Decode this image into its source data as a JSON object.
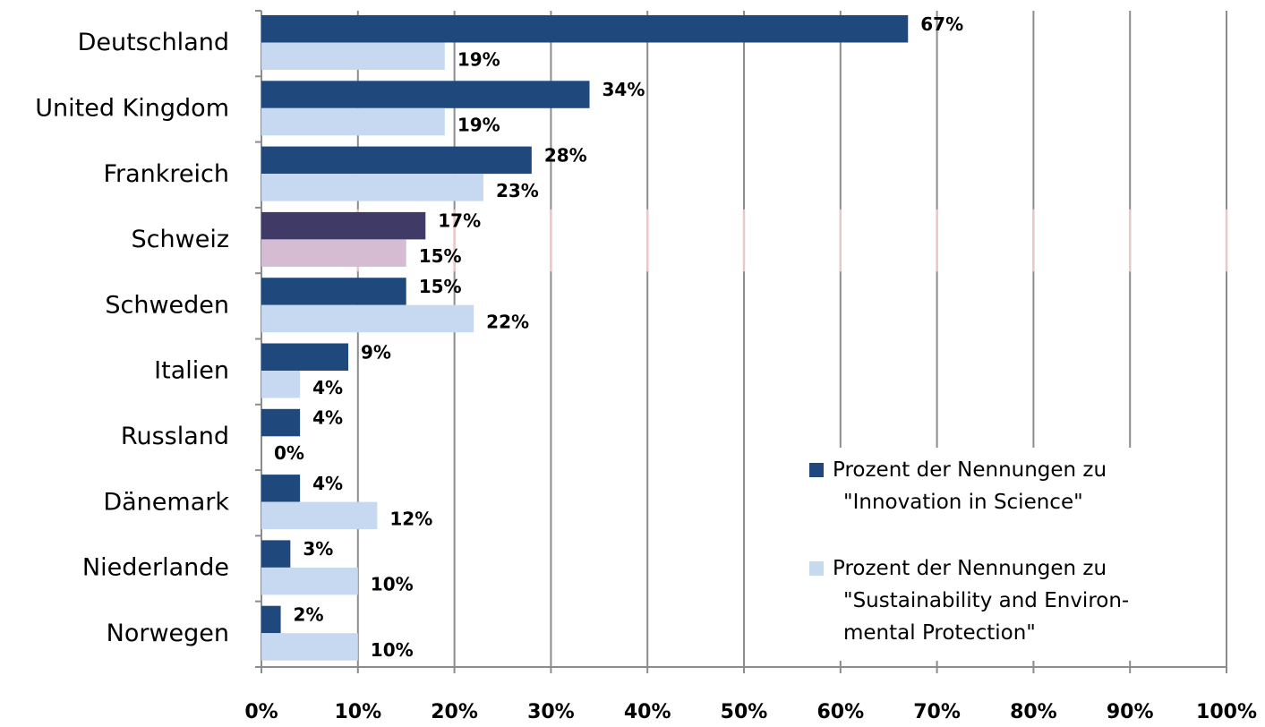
{
  "chart_data": {
    "type": "bar",
    "orientation": "horizontal",
    "categories": [
      "Deutschland",
      "United Kingdom",
      "Frankreich",
      "Schweiz",
      "Schweden",
      "Italien",
      "Russland",
      "Dänemark",
      "Niederlande",
      "Norwegen"
    ],
    "series": [
      {
        "name": "Prozent der Nennungen zu\n\"Innovation in Science\"",
        "color": "#1f497d",
        "highlight_color": "#3f3a66",
        "values": [
          67,
          34,
          28,
          17,
          15,
          9,
          4,
          4,
          3,
          2
        ],
        "value_labels": [
          "67%",
          "34%",
          "28%",
          "17%",
          "15%",
          "9%",
          "4%",
          "4%",
          "3%",
          "2%"
        ]
      },
      {
        "name": "Prozent der Nennungen zu\n\"Sustainability and Environ-\nmental Protection\"",
        "color": "#c6d9f1",
        "highlight_color": "#d5bcd2",
        "values": [
          19,
          19,
          23,
          15,
          22,
          4,
          0,
          12,
          10,
          10
        ],
        "value_labels": [
          "19%",
          "19%",
          "23%",
          "15%",
          "22%",
          "4%",
          "0%",
          "12%",
          "10%",
          "10%"
        ]
      }
    ],
    "highlight_category": "Schweiz",
    "highlight_text_color": "#5a1c1c",
    "xlim": [
      0,
      100
    ],
    "xticks": [
      {
        "value": 0,
        "label": "0%"
      },
      {
        "value": 10,
        "label": "10%"
      },
      {
        "value": 20,
        "label": "20%"
      },
      {
        "value": 30,
        "label": "30%"
      },
      {
        "value": 40,
        "label": "40%"
      },
      {
        "value": 50,
        "label": "50%"
      },
      {
        "value": 60,
        "label": "60%"
      },
      {
        "value": 70,
        "label": "70%"
      },
      {
        "value": 80,
        "label": "80%"
      },
      {
        "value": 90,
        "label": "90%"
      },
      {
        "value": 100,
        "label": "100%"
      }
    ],
    "grid": true,
    "legend": "lower right"
  }
}
